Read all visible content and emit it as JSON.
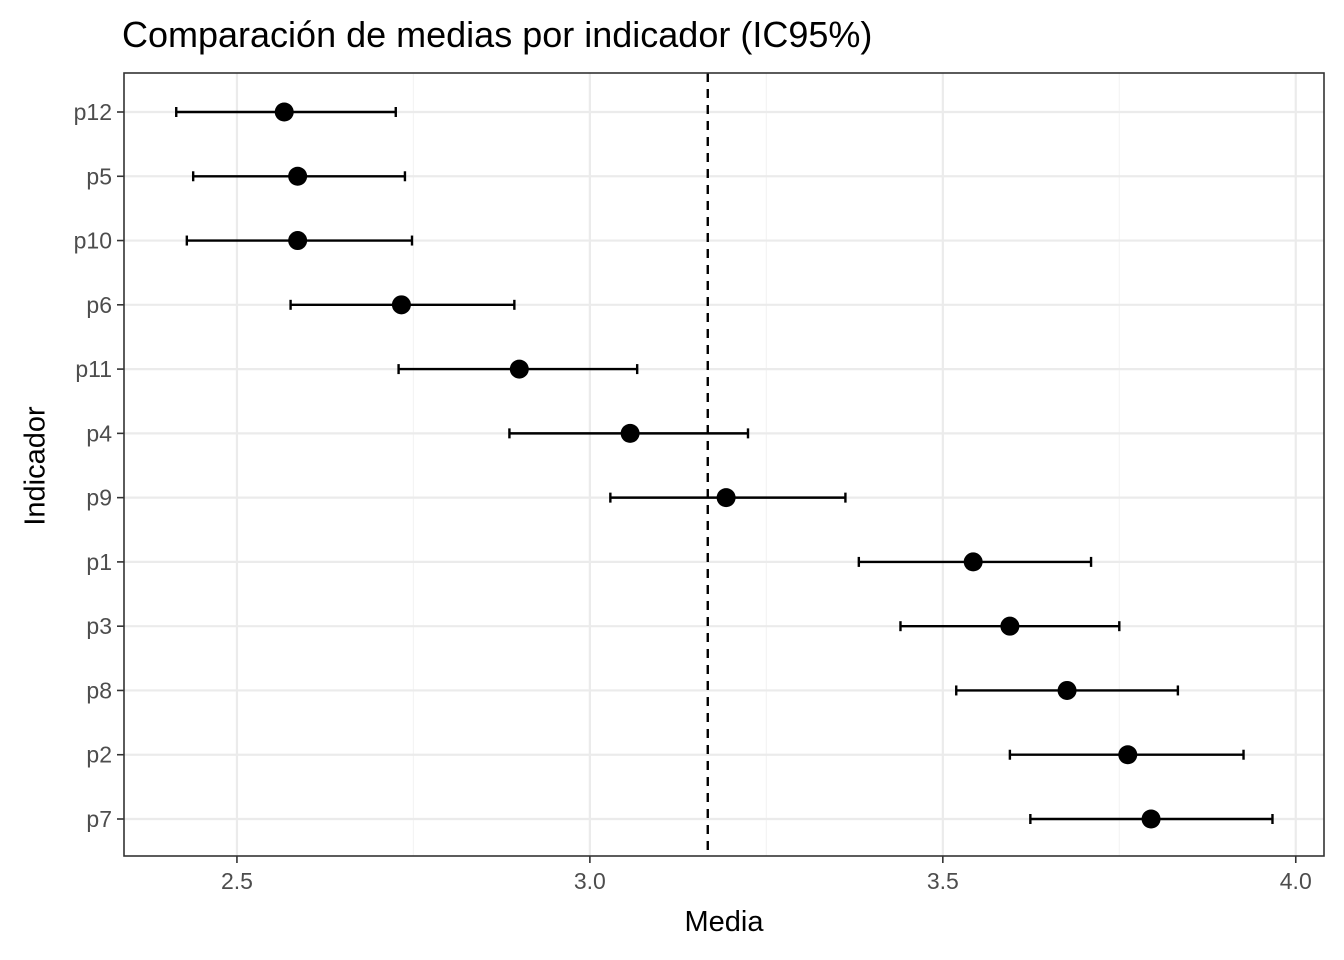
{
  "chart_data": {
    "type": "scatter",
    "title": "Comparación de medias por indicador (IC95%)",
    "xlabel": "Media",
    "ylabel": "Indicador",
    "xlim": [
      2.34,
      4.04
    ],
    "x_ticks": [
      "2.5",
      "3.0",
      "3.5",
      "4.0"
    ],
    "x_tick_values": [
      2.5,
      3.0,
      3.5,
      4.0
    ],
    "reference_line": 3.167,
    "grid": true,
    "colors": {
      "point": "#000000",
      "grid_major": "#ebebeb",
      "grid_minor": "#f4f4f4",
      "panel_border": "#333333",
      "tick_text": "#4d4d4d"
    },
    "categories": [
      "p12",
      "p5",
      "p10",
      "p6",
      "p11",
      "p4",
      "p9",
      "p1",
      "p3",
      "p8",
      "p2",
      "p7"
    ],
    "series": [
      {
        "means": [
          2.567,
          2.586,
          2.586,
          2.733,
          2.9,
          3.057,
          3.193,
          3.543,
          3.595,
          3.676,
          3.762,
          3.795
        ],
        "lower": [
          2.414,
          2.438,
          2.429,
          2.576,
          2.729,
          2.886,
          3.029,
          3.381,
          3.44,
          3.519,
          3.595,
          3.624
        ],
        "upper": [
          2.725,
          2.738,
          2.748,
          2.893,
          3.067,
          3.224,
          3.362,
          3.71,
          3.75,
          3.833,
          3.926,
          3.967
        ]
      }
    ]
  }
}
